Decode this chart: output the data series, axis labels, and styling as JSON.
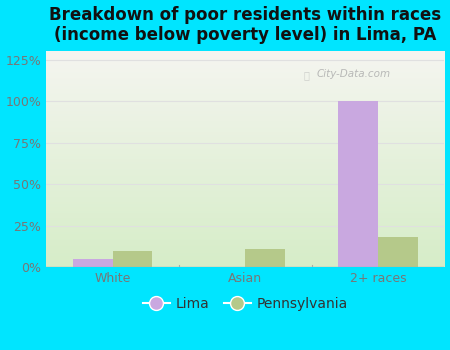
{
  "title": "Breakdown of poor residents within races\n(income below poverty level) in Lima, PA",
  "categories": [
    "White",
    "Asian",
    "2+ races"
  ],
  "lima_values": [
    5.0,
    0.0,
    100.0
  ],
  "pa_values": [
    10.0,
    11.0,
    18.0
  ],
  "lima_color": "#c9a8e0",
  "pa_color": "#b5c98a",
  "background_outer": "#00e5ff",
  "background_inner_top": "#f5f5f0",
  "background_inner_bottom": "#d6edc8",
  "ylim": [
    0,
    130
  ],
  "yticks": [
    0,
    25,
    50,
    75,
    100,
    125
  ],
  "ytick_labels": [
    "0%",
    "25%",
    "50%",
    "75%",
    "100%",
    "125%"
  ],
  "grid_color": "#e0e0e0",
  "bar_width": 0.3,
  "title_fontsize": 12,
  "tick_fontsize": 9,
  "legend_fontsize": 10,
  "watermark": "City-Data.com"
}
